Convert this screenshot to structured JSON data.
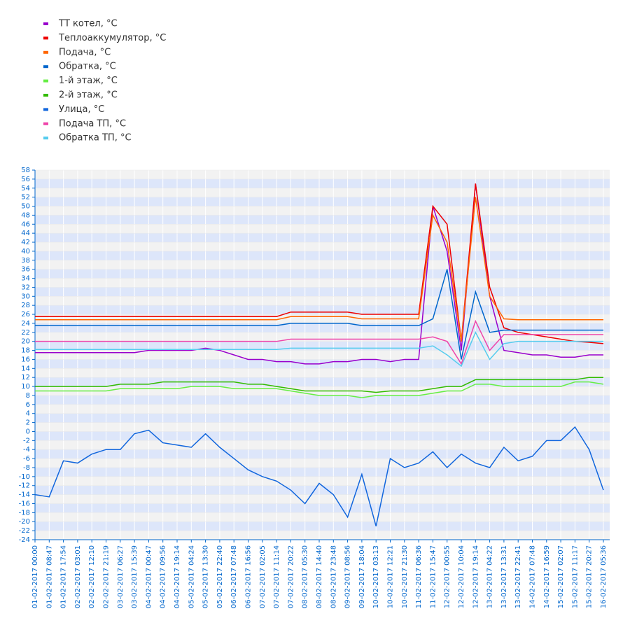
{
  "chart_data": {
    "type": "line",
    "categories": [
      "01-02-2017 00:00",
      "01-02-2017 08:47",
      "01-02-2017 17:54",
      "02-02-2017 03:01",
      "02-02-2017 12:10",
      "02-02-2017 21:19",
      "03-02-2017 06:27",
      "03-02-2017 15:39",
      "04-02-2017 00:47",
      "04-02-2017 09:56",
      "04-02-2017 19:14",
      "05-02-2017 04:24",
      "05-02-2017 13:30",
      "05-02-2017 22:40",
      "06-02-2017 07:48",
      "06-02-2017 16:56",
      "07-02-2017 02:05",
      "07-02-2017 11:14",
      "07-02-2017 20:22",
      "08-02-2017 05:30",
      "08-02-2017 14:40",
      "08-02-2017 23:48",
      "09-02-2017 08:56",
      "09-02-2017 18:04",
      "10-02-2017 03:13",
      "10-02-2017 12:21",
      "10-02-2017 21:30",
      "11-02-2017 06:36",
      "11-02-2017 15:47",
      "12-02-2017 00:55",
      "12-02-2017 10:04",
      "12-02-2017 19:14",
      "13-02-2017 04:22",
      "13-02-2017 13:31",
      "13-02-2017 22:41",
      "14-02-2017 07:48",
      "14-02-2017 16:59",
      "15-02-2017 02:07",
      "15-02-2017 11:17",
      "15-02-2017 20:27",
      "16-02-2017 05:36"
    ],
    "series": [
      {
        "name": "ТТ котел, °C",
        "color": "#9900cc",
        "values": [
          17.5,
          17.5,
          17.5,
          17.5,
          17.5,
          17.5,
          17.5,
          17.5,
          18,
          18,
          18,
          18,
          18.5,
          18,
          17,
          16,
          16,
          15.5,
          15.5,
          15,
          15,
          15.5,
          15.5,
          16,
          16,
          15.5,
          16,
          16,
          50,
          40,
          18,
          55,
          30,
          18,
          17.5,
          17,
          17,
          16.5,
          16.5,
          17,
          17
        ]
      },
      {
        "name": "Теплоаккумулятор, °C",
        "color": "#ee0000",
        "values": [
          25.5,
          25.5,
          25.5,
          25.5,
          25.5,
          25.5,
          25.5,
          25.5,
          25.5,
          25.5,
          25.5,
          25.5,
          25.5,
          25.5,
          25.5,
          25.5,
          25.5,
          25.5,
          26.5,
          26.5,
          26.5,
          26.5,
          26.5,
          26,
          26,
          26,
          26,
          26,
          50,
          46,
          20,
          55,
          32,
          23,
          22,
          21.5,
          21,
          20.5,
          20,
          19.8,
          19.5
        ]
      },
      {
        "name": "Подача, °C",
        "color": "#ff6600",
        "values": [
          24.8,
          24.8,
          24.8,
          24.8,
          24.8,
          24.8,
          24.8,
          24.8,
          24.8,
          24.8,
          24.8,
          24.8,
          24.8,
          24.8,
          24.8,
          24.8,
          24.8,
          24.8,
          25.5,
          25.5,
          25.5,
          25.5,
          25.5,
          25,
          25,
          25,
          25,
          25,
          48,
          42,
          20,
          52,
          30,
          25,
          24.8,
          24.8,
          24.8,
          24.8,
          24.8,
          24.8,
          24.8
        ]
      },
      {
        "name": "Обратка, °C",
        "color": "#0066cc",
        "values": [
          23.5,
          23.5,
          23.5,
          23.5,
          23.5,
          23.5,
          23.5,
          23.5,
          23.5,
          23.5,
          23.5,
          23.5,
          23.5,
          23.5,
          23.5,
          23.5,
          23.5,
          23.5,
          24,
          24,
          24,
          24,
          24,
          23.5,
          23.5,
          23.5,
          23.5,
          23.5,
          25,
          36,
          16,
          31,
          22,
          22.5,
          22.5,
          22.5,
          22.5,
          22.5,
          22.5,
          22.5,
          22.5
        ]
      },
      {
        "name": "1-й этаж, °C",
        "color": "#66ee44",
        "values": [
          9,
          9,
          9,
          9,
          9,
          9,
          9.5,
          9.5,
          9.5,
          9.5,
          9.5,
          10,
          10,
          10,
          9.5,
          9.5,
          9.5,
          9.5,
          9,
          8.5,
          8,
          8,
          8,
          7.5,
          8,
          8,
          8,
          8,
          8.5,
          9,
          9,
          10.5,
          10.5,
          10,
          10,
          10,
          10,
          10,
          11,
          11,
          10.5
        ]
      },
      {
        "name": "2-й этаж, °C",
        "color": "#33bb00",
        "values": [
          10,
          10,
          10,
          10,
          10,
          10,
          10.5,
          10.5,
          10.5,
          11,
          11,
          11,
          11,
          11,
          11,
          10.5,
          10.5,
          10,
          9.5,
          9,
          9,
          9,
          9,
          9,
          8.7,
          9,
          9,
          9,
          9.5,
          10,
          10,
          11.5,
          11.5,
          11.5,
          11.5,
          11.5,
          11.5,
          11.5,
          11.5,
          12,
          12
        ]
      },
      {
        "name": "Улица, °C",
        "color": "#1166dd",
        "values": [
          -14,
          -14.5,
          -6.5,
          -7,
          -5,
          -4,
          -4,
          -0.5,
          0.3,
          -2.5,
          -3,
          -3.5,
          -0.5,
          -3.5,
          -6,
          -8.5,
          -10,
          -11,
          -13,
          -16,
          -11.5,
          -14,
          -19,
          -9.5,
          -21,
          -6,
          -8,
          -7,
          -4.5,
          -8,
          -5,
          -7,
          -8,
          -3.5,
          -6.5,
          -5.5,
          -2,
          -2,
          1,
          -4,
          -13
        ]
      },
      {
        "name": "Подача ТП, °C",
        "color": "#ee44aa",
        "values": [
          20,
          20,
          20,
          20,
          20,
          20,
          20,
          20,
          20,
          20,
          20,
          20,
          20,
          20,
          20,
          20,
          20,
          20,
          20.5,
          20.5,
          20.5,
          20.5,
          20.5,
          20.5,
          20.5,
          20.5,
          20.5,
          20.5,
          21,
          20,
          15,
          24.5,
          18,
          21.5,
          21.5,
          21.5,
          21.5,
          21.5,
          21.5,
          21.5,
          21.5
        ]
      },
      {
        "name": "Обратка ТП, °C",
        "color": "#55ccee",
        "values": [
          18.2,
          18.2,
          18.2,
          18.2,
          18.2,
          18.2,
          18.2,
          18.2,
          18.2,
          18.2,
          18.2,
          18.2,
          18.2,
          18.2,
          18.2,
          18.2,
          18.2,
          18.2,
          18.5,
          18.5,
          18.5,
          18.5,
          18.5,
          18.5,
          18.5,
          18.5,
          18.5,
          18.5,
          19,
          17,
          14.5,
          22,
          16,
          19.5,
          20,
          20,
          20,
          20,
          20,
          20,
          20
        ]
      }
    ],
    "ylim": [
      -24,
      58
    ],
    "yticks": [
      -24,
      -22,
      -20,
      -18,
      -16,
      -14,
      -12,
      -10,
      -8,
      -6,
      -4,
      -2,
      0,
      2,
      4,
      6,
      8,
      10,
      12,
      14,
      16,
      18,
      20,
      22,
      24,
      26,
      28,
      30,
      32,
      34,
      36,
      38,
      40,
      42,
      44,
      46,
      48,
      50,
      52,
      54,
      56,
      58
    ],
    "grid": true
  }
}
